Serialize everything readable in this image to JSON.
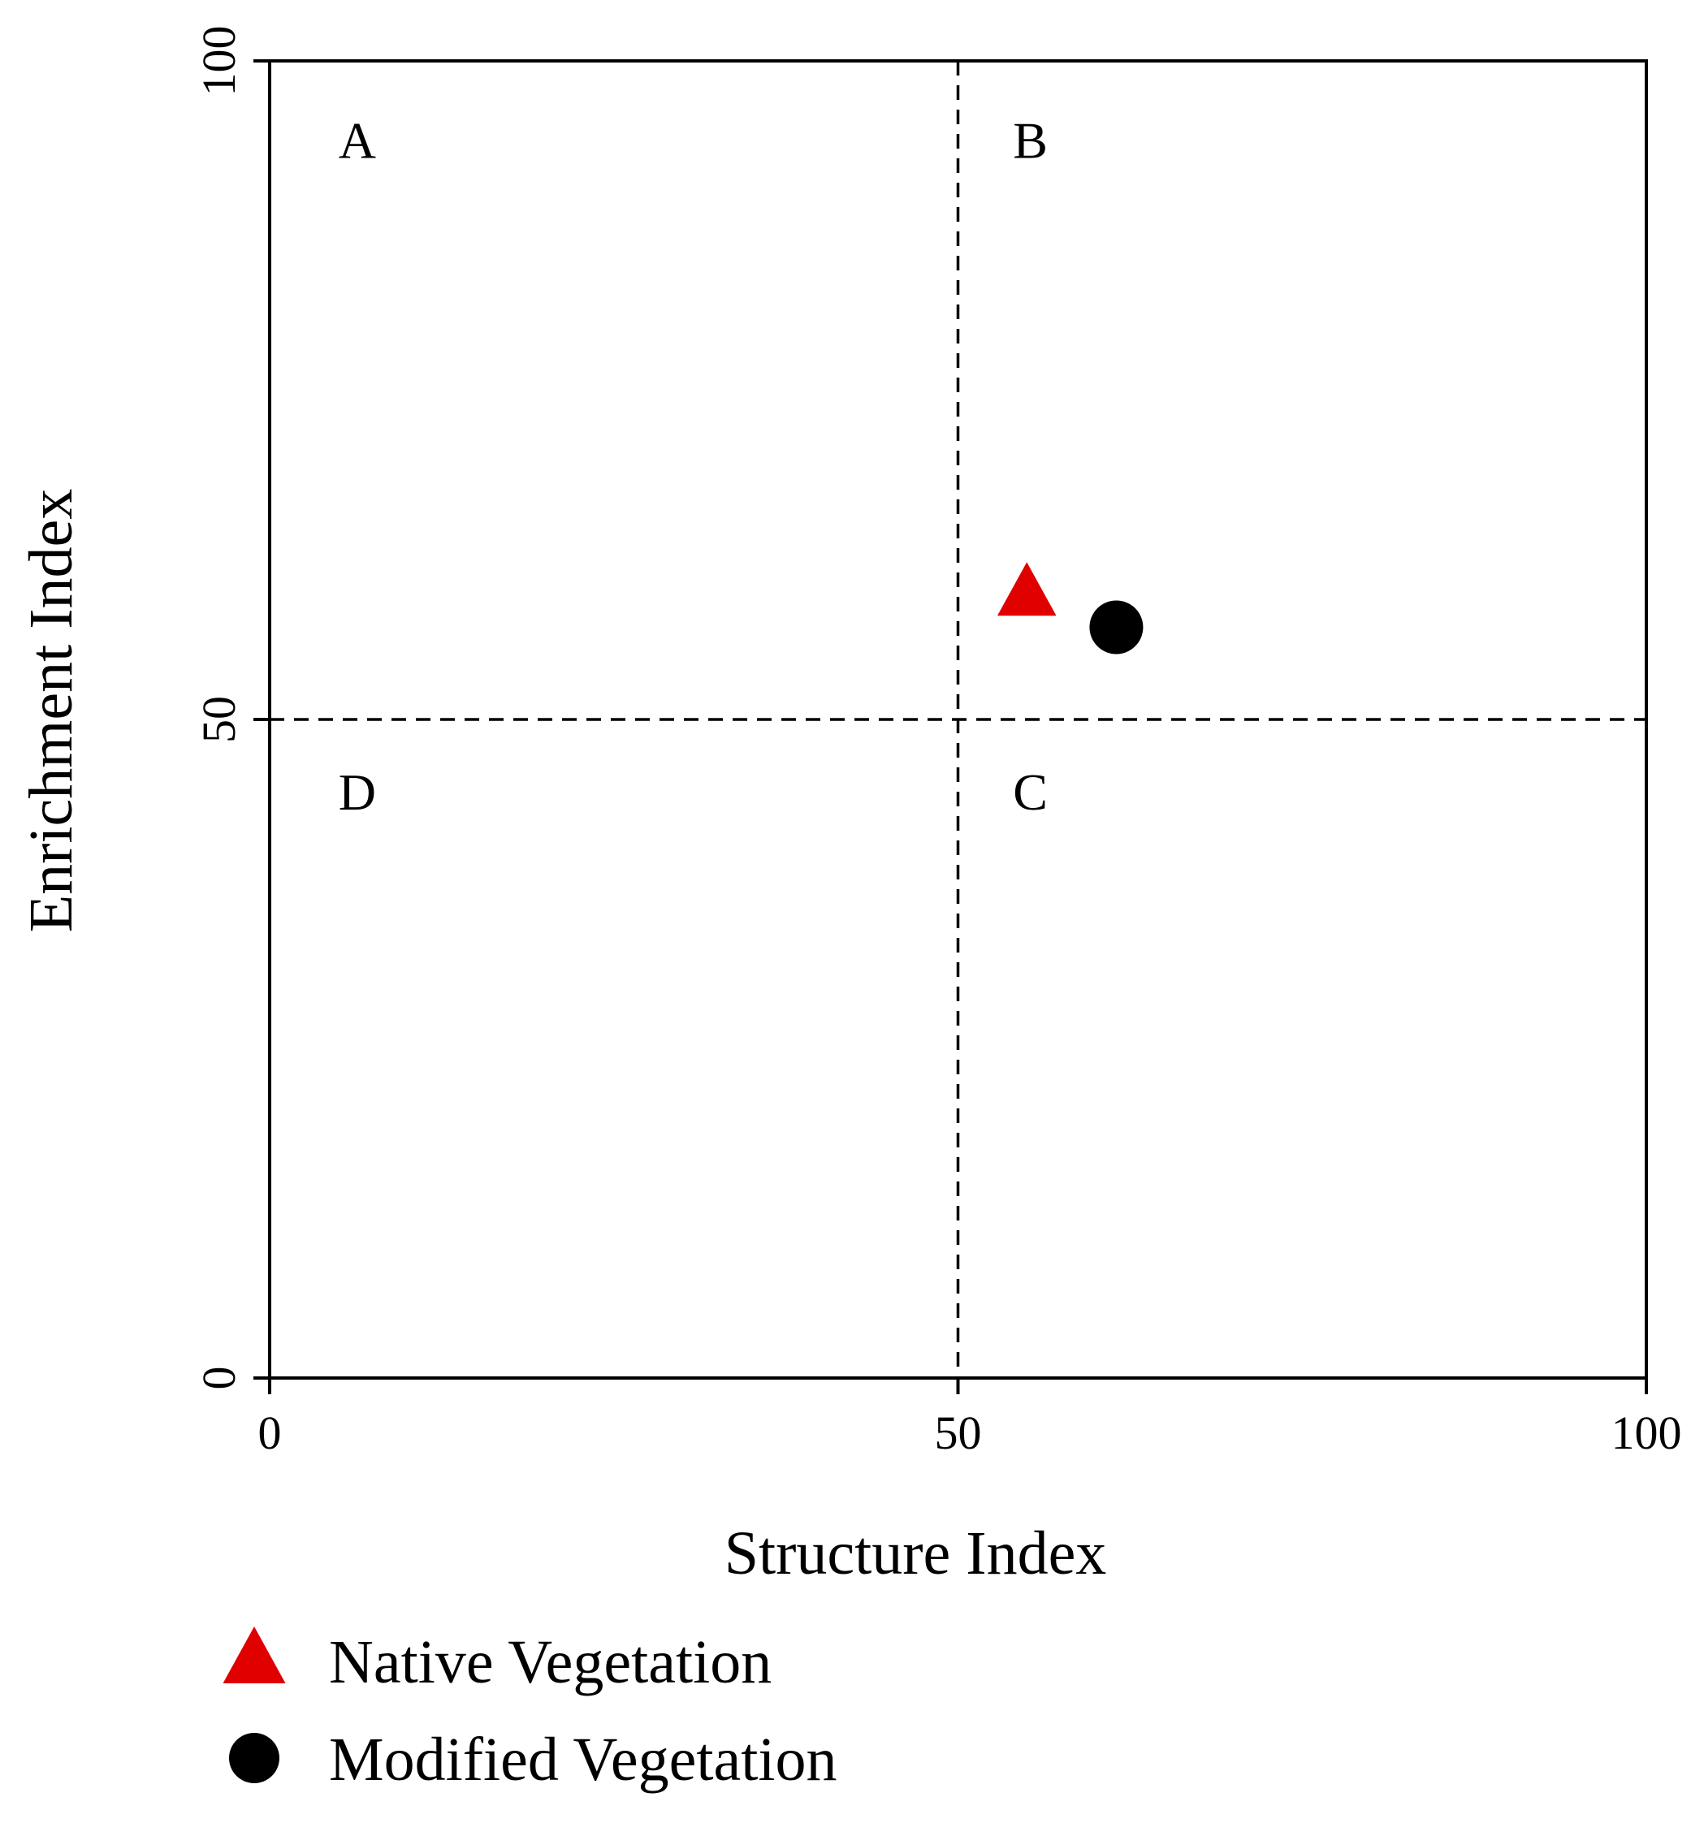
{
  "chart_data": {
    "type": "scatter",
    "xlabel": "Structure Index",
    "ylabel": "Enrichment Index",
    "xlim": [
      0,
      100
    ],
    "ylim": [
      0,
      100
    ],
    "x_ticks": [
      0,
      50,
      100
    ],
    "y_ticks": [
      0,
      50,
      100
    ],
    "reference_lines": {
      "x": 50,
      "y": 50,
      "style": "dashed"
    },
    "quadrant_labels": [
      {
        "label": "A",
        "x": 5,
        "y": 94
      },
      {
        "label": "B",
        "x": 54,
        "y": 94
      },
      {
        "label": "C",
        "x": 54,
        "y": 44.5
      },
      {
        "label": "D",
        "x": 5,
        "y": 44.5
      }
    ],
    "series": [
      {
        "name": "Native Vegetation",
        "marker": "triangle",
        "color": "#e00000",
        "points": [
          {
            "x": 55,
            "y": 59.5
          }
        ]
      },
      {
        "name": "Modified Vegetation",
        "marker": "circle",
        "color": "#000000",
        "points": [
          {
            "x": 61.5,
            "y": 57
          }
        ]
      }
    ],
    "legend_position": "bottom-left",
    "grid": false
  }
}
